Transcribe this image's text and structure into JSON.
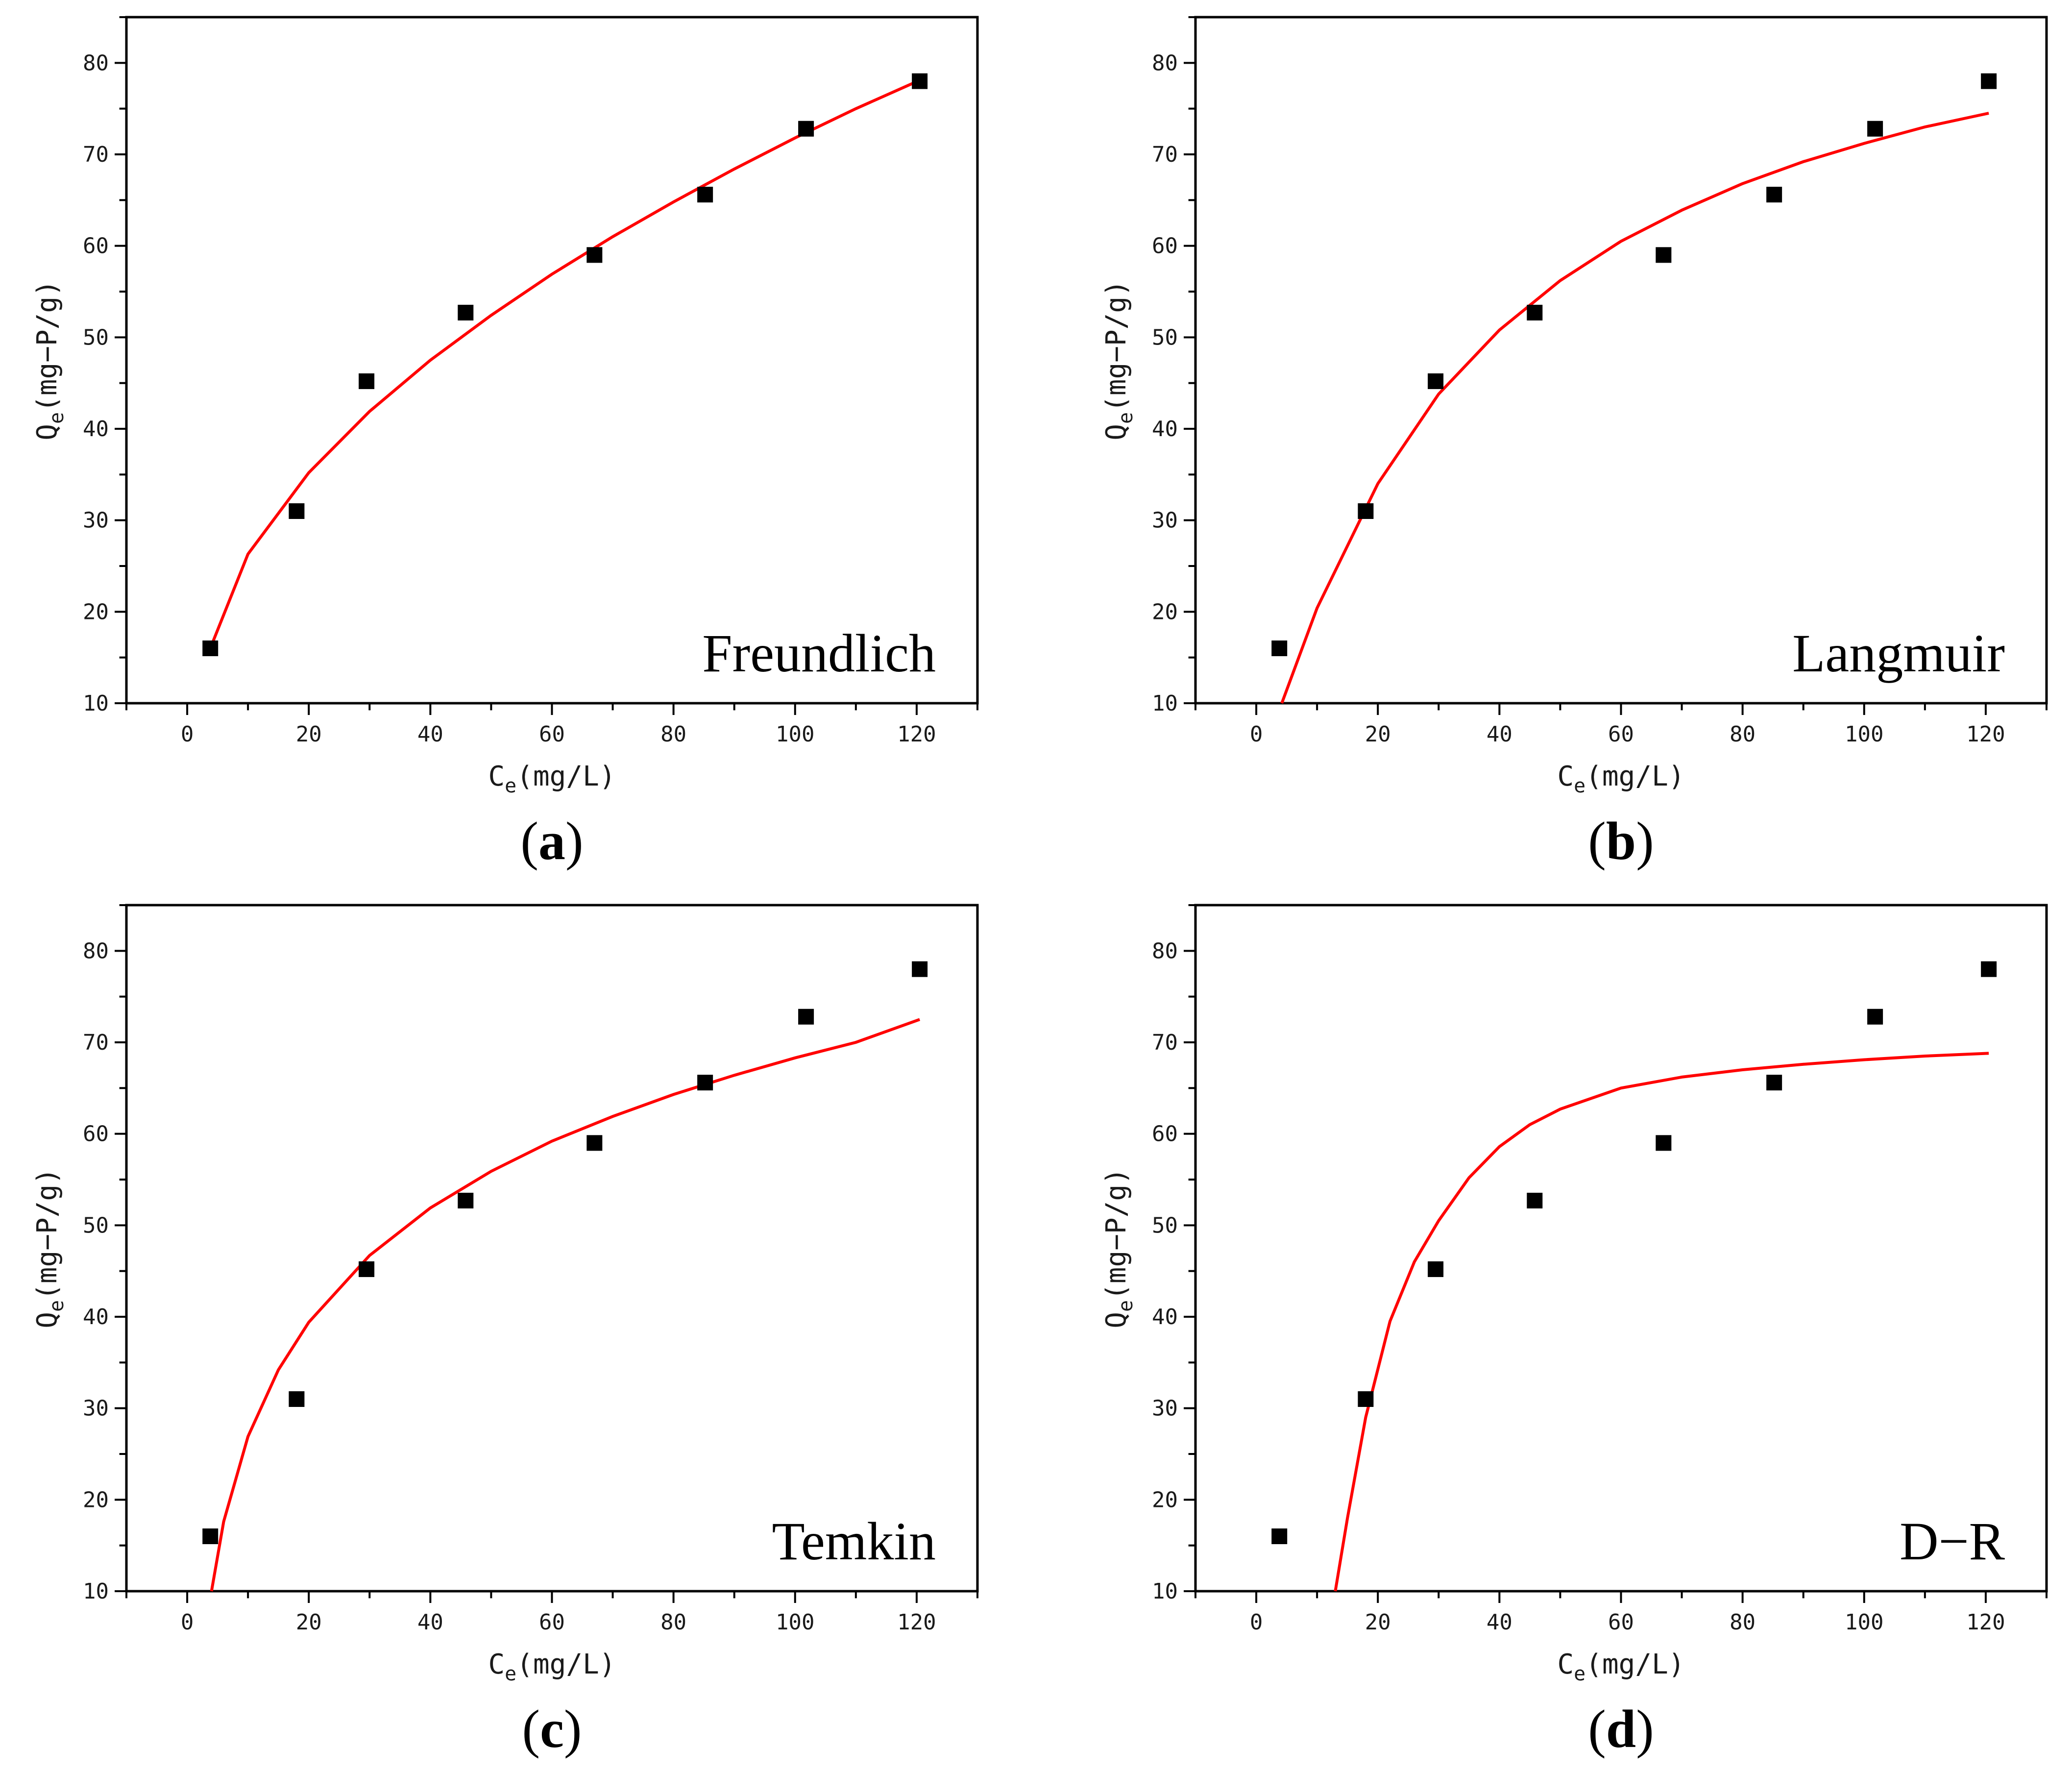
{
  "chart_data": [
    {
      "type": "scatter",
      "panel": "a",
      "caption_open": "(",
      "caption_letter": "a",
      "caption_close": ")",
      "model_label": "Freundlich",
      "xlabel_main": "C",
      "xlabel_sub": "e",
      "xlabel_units": "(mg/L)",
      "ylabel_main": "Q",
      "ylabel_sub": "e",
      "ylabel_units": "(mg−P/g)",
      "xlim": [
        -10,
        130
      ],
      "ylim": [
        10,
        85
      ],
      "xticks": [
        0,
        20,
        40,
        60,
        80,
        100,
        120
      ],
      "yticks": [
        10,
        20,
        30,
        40,
        50,
        60,
        70,
        80
      ],
      "grid": false,
      "series": [
        {
          "type": "scatter",
          "color": "#000000",
          "marker": "square",
          "x": [
            3.8,
            18.0,
            29.5,
            45.8,
            67.0,
            85.2,
            101.8,
            120.5
          ],
          "y": [
            16.0,
            31.0,
            45.2,
            52.7,
            59.0,
            65.6,
            72.8,
            78.0
          ]
        },
        {
          "type": "line",
          "color": "#ff0000",
          "x": [
            3.8,
            10,
            20,
            30,
            40,
            50,
            60,
            70,
            80,
            90,
            100,
            110,
            120.5
          ],
          "y": [
            16.0,
            26.3,
            35.2,
            41.9,
            47.5,
            52.4,
            56.9,
            61.0,
            64.8,
            68.4,
            71.8,
            75.0,
            78.1
          ]
        }
      ]
    },
    {
      "type": "scatter",
      "panel": "b",
      "caption_open": "(",
      "caption_letter": "b",
      "caption_close": ")",
      "model_label": "Langmuir",
      "xlabel_main": "C",
      "xlabel_sub": "e",
      "xlabel_units": "(mg/L)",
      "ylabel_main": "Q",
      "ylabel_sub": "e",
      "ylabel_units": "(mg−P/g)",
      "xlim": [
        -10,
        130
      ],
      "ylim": [
        10,
        85
      ],
      "xticks": [
        0,
        20,
        40,
        60,
        80,
        100,
        120
      ],
      "yticks": [
        10,
        20,
        30,
        40,
        50,
        60,
        70,
        80
      ],
      "grid": false,
      "series": [
        {
          "type": "scatter",
          "color": "#000000",
          "marker": "square",
          "x": [
            3.8,
            18.0,
            29.5,
            45.8,
            67.0,
            85.2,
            101.8,
            120.5
          ],
          "y": [
            16.0,
            31.0,
            45.2,
            52.7,
            59.0,
            65.6,
            72.8,
            78.0
          ]
        },
        {
          "type": "line",
          "color": "#ff0000",
          "x": [
            4.2,
            10,
            20,
            30,
            40,
            50,
            60,
            70,
            80,
            90,
            100,
            110,
            120.5
          ],
          "y": [
            10.0,
            20.4,
            34.0,
            43.8,
            50.8,
            56.2,
            60.5,
            63.9,
            66.8,
            69.2,
            71.2,
            73.0,
            74.5
          ]
        }
      ]
    },
    {
      "type": "scatter",
      "panel": "c",
      "caption_open": "(",
      "caption_letter": "c",
      "caption_close": ")",
      "model_label": "Temkin",
      "xlabel_main": "C",
      "xlabel_sub": "e",
      "xlabel_units": "(mg/L)",
      "ylabel_main": "Q",
      "ylabel_sub": "e",
      "ylabel_units": "(mg−P/g)",
      "xlim": [
        -10,
        130
      ],
      "ylim": [
        10,
        85
      ],
      "xticks": [
        0,
        20,
        40,
        60,
        80,
        100,
        120
      ],
      "yticks": [
        10,
        20,
        30,
        40,
        50,
        60,
        70,
        80
      ],
      "grid": false,
      "series": [
        {
          "type": "scatter",
          "color": "#000000",
          "marker": "square",
          "x": [
            3.8,
            18.0,
            29.5,
            45.8,
            67.0,
            85.2,
            101.8,
            120.5
          ],
          "y": [
            16.0,
            31.0,
            45.2,
            52.7,
            59.0,
            65.6,
            72.8,
            78.0
          ]
        },
        {
          "type": "line",
          "color": "#ff0000",
          "x": [
            4.0,
            6,
            10,
            15,
            20,
            30,
            40,
            50,
            60,
            70,
            80,
            90,
            100,
            110,
            120.5
          ],
          "y": [
            10.0,
            17.6,
            26.9,
            34.2,
            39.4,
            46.7,
            51.9,
            55.9,
            59.2,
            61.9,
            64.3,
            66.4,
            68.3,
            70.0,
            72.5
          ]
        }
      ]
    },
    {
      "type": "scatter",
      "panel": "d",
      "caption_open": "(",
      "caption_letter": "d",
      "caption_close": ")",
      "model_label": "D−R",
      "xlabel_main": "C",
      "xlabel_sub": "e",
      "xlabel_units": "(mg/L)",
      "ylabel_main": "Q",
      "ylabel_sub": "e",
      "ylabel_units": "(mg−P/g)",
      "xlim": [
        -10,
        130
      ],
      "ylim": [
        10,
        85
      ],
      "xticks": [
        0,
        20,
        40,
        60,
        80,
        100,
        120
      ],
      "yticks": [
        10,
        20,
        30,
        40,
        50,
        60,
        70,
        80
      ],
      "grid": false,
      "series": [
        {
          "type": "scatter",
          "color": "#000000",
          "marker": "square",
          "x": [
            3.8,
            18.0,
            29.5,
            45.8,
            67.0,
            85.2,
            101.8,
            120.5
          ],
          "y": [
            16.0,
            31.0,
            45.2,
            52.7,
            59.0,
            65.6,
            72.8,
            78.0
          ]
        },
        {
          "type": "line",
          "color": "#ff0000",
          "x": [
            13.0,
            15,
            18,
            22,
            26,
            30,
            35,
            40,
            45,
            50,
            60,
            70,
            80,
            90,
            100,
            110,
            120.5
          ],
          "y": [
            10.0,
            18.0,
            29.0,
            39.5,
            46.0,
            50.5,
            55.2,
            58.6,
            61.0,
            62.7,
            65.0,
            66.2,
            67.0,
            67.6,
            68.1,
            68.5,
            68.8
          ]
        }
      ]
    }
  ]
}
